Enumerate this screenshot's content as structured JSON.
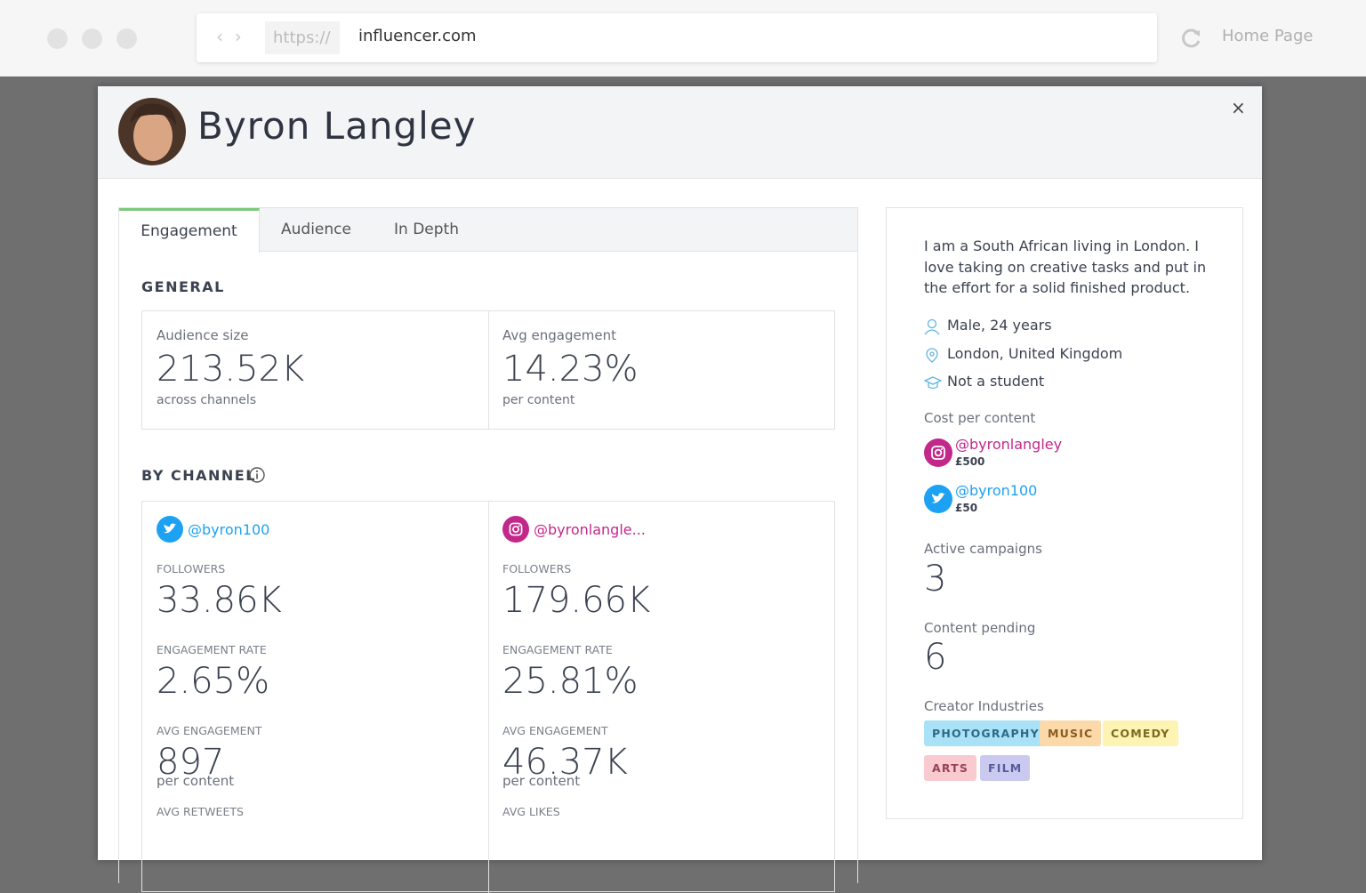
{
  "browser": {
    "scheme": "https://",
    "url": "influencer.com",
    "home": "Home Page"
  },
  "profile": {
    "name": "Byron Langley",
    "close": "×"
  },
  "tabs": [
    "Engagement",
    "Audience",
    "In Depth"
  ],
  "general": {
    "title": "GENERAL",
    "stats": [
      {
        "label": "Audience size",
        "value": "213.52K",
        "sub": "across channels"
      },
      {
        "label": "Avg engagement",
        "value": "14.23%",
        "sub": "per content"
      }
    ]
  },
  "by_channel": {
    "title": "BY CHANNEL",
    "channels": [
      {
        "network": "twitter",
        "handle": "@byron100",
        "metrics": [
          {
            "label": "FOLLOWERS",
            "value": "33.86K"
          },
          {
            "label": "ENGAGEMENT RATE",
            "value": "2.65%"
          },
          {
            "label": "AVG ENGAGEMENT",
            "value": "897",
            "sub": "per content"
          },
          {
            "label": "AVG RETWEETS"
          }
        ]
      },
      {
        "network": "instagram",
        "handle": "@byronlangle...",
        "metrics": [
          {
            "label": "FOLLOWERS",
            "value": "179.66K"
          },
          {
            "label": "ENGAGEMENT RATE",
            "value": "25.81%"
          },
          {
            "label": "AVG ENGAGEMENT",
            "value": "46.37K",
            "sub": "per content"
          },
          {
            "label": "AVG LIKES"
          }
        ]
      }
    ]
  },
  "sidebar": {
    "bio": "I am a South African living in London. I love taking on creative tasks and put in the effort for a solid finished product.",
    "facts": [
      "Male, 24 years",
      "London, United Kingdom",
      "Not a student"
    ],
    "cost_title": "Cost per content",
    "costs": [
      {
        "network": "instagram",
        "handle": "@byronlangley",
        "price": "£500"
      },
      {
        "network": "twitter",
        "handle": "@byron100",
        "price": "£50"
      }
    ],
    "active_label": "Active campaigns",
    "active_value": "3",
    "pending_label": "Content pending",
    "pending_value": "6",
    "industries_title": "Creator Industries",
    "industries": [
      "PHOTOGRAPHY",
      "MUSIC",
      "COMEDY",
      "ARTS",
      "FILM"
    ]
  }
}
